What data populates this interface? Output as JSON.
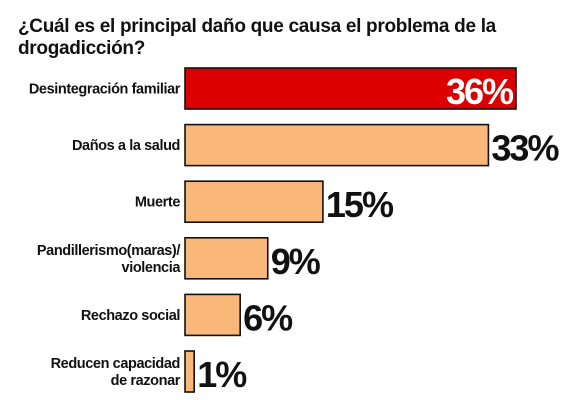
{
  "chart_data": {
    "type": "bar",
    "orientation": "horizontal",
    "title": "¿Cuál es el principal daño que causa el problema de la drogadicción?",
    "categories": [
      [
        "Desintegración familiar"
      ],
      [
        "Daños a la salud"
      ],
      [
        "Muerte"
      ],
      [
        "Pandillerismo(maras)/",
        "violencia"
      ],
      [
        "Rechazo social"
      ],
      [
        "Reducen capacidad",
        "de razonar"
      ]
    ],
    "values": [
      36,
      33,
      15,
      9,
      6,
      1
    ],
    "value_labels": [
      "36%",
      "33%",
      "15%",
      "9%",
      "6%",
      "1%"
    ],
    "highlight_index": 0,
    "xlim": [
      0,
      36
    ],
    "grid": false,
    "legend": "none",
    "colors": {
      "bar": "#F9B77A",
      "highlight": "#DD0000",
      "outline": "#111111",
      "text": "#111111",
      "highlight_label": "#ffffff"
    }
  }
}
